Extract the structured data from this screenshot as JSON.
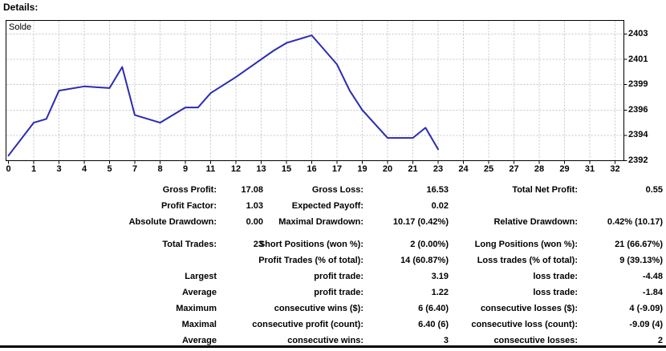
{
  "header": {
    "title": "Details:"
  },
  "chart_style": {
    "line_color": "#2b2bb2",
    "grid_color": "#c6c6c6",
    "border_color": "#000000",
    "background": "#ffffff"
  },
  "chart_data": {
    "type": "line",
    "title": "Solde",
    "legend_position": "top-left",
    "grid": true,
    "xlabel": "",
    "ylabel": "",
    "ylim": [
      2392,
      2403
    ],
    "xlim": [
      0,
      32
    ],
    "x": [
      0,
      1,
      2,
      3,
      4,
      5,
      6,
      7,
      8,
      9,
      10,
      11,
      12,
      13,
      14,
      15,
      16,
      17,
      18,
      19,
      20,
      21,
      22,
      23
    ],
    "values": [
      2392.4,
      2395.0,
      2395.3,
      2398.3,
      2398.8,
      2398.6,
      2400.4,
      2395.6,
      2395.0,
      2396.3,
      2396.3,
      2398.0,
      2399.6,
      2401.0,
      2401.7,
      2402.3,
      2402.9,
      2400.6,
      2398.3,
      2396.0,
      2393.8,
      2393.8,
      2394.6,
      2392.9
    ],
    "x_tick_labels": [
      "0",
      "1",
      "3",
      "4",
      "5",
      "7",
      "8",
      "9",
      "11",
      "12",
      "13",
      "15",
      "16",
      "17",
      "19",
      "20",
      "21",
      "23",
      "24",
      "25",
      "27",
      "28",
      "29",
      "31",
      "32"
    ],
    "y_tick_labels": [
      "2403",
      "2401",
      "2399",
      "2396",
      "2394",
      "2392"
    ]
  },
  "table": {
    "rows": [
      {
        "c1": "Gross Profit:",
        "c2": "17.08",
        "c3": "Gross Loss:",
        "c4": "16.53",
        "c5": "Total Net Profit:",
        "c6": "0.55",
        "gap_before": false
      },
      {
        "c1": "Profit Factor:",
        "c2": "1.03",
        "c3": "Expected Payoff:",
        "c4": "0.02",
        "c5": "",
        "c6": "",
        "gap_before": false
      },
      {
        "c1": "Absolute Drawdown:",
        "c2": "0.00",
        "c3": "Maximal Drawdown:",
        "c4": "10.17 (0.42%)",
        "c5": "Relative Drawdown:",
        "c6": "0.42% (10.17)",
        "gap_before": false
      },
      {
        "c1": "Total Trades:",
        "c2": "23",
        "c3": "Short Positions (won %):",
        "c4": "2 (0.00%)",
        "c5": "Long Positions (won %):",
        "c6": "21 (66.67%)",
        "gap_before": true
      },
      {
        "c1": "",
        "c2": "",
        "c3": "Profit Trades (% of total):",
        "c4": "14 (60.87%)",
        "c5": "Loss trades (% of total):",
        "c6": "9 (39.13%)",
        "gap_before": false
      },
      {
        "c1": "Largest",
        "c2": "",
        "c3": "profit trade:",
        "c4": "3.19",
        "c5": "loss trade:",
        "c6": "-4.48",
        "gap_before": false
      },
      {
        "c1": "Average",
        "c2": "",
        "c3": "profit trade:",
        "c4": "1.22",
        "c5": "loss trade:",
        "c6": "-1.84",
        "gap_before": false
      },
      {
        "c1": "Maximum",
        "c2": "",
        "c3": "consecutive wins ($):",
        "c4": "6 (6.40)",
        "c5": "consecutive losses ($):",
        "c6": "4 (-9.09)",
        "gap_before": false
      },
      {
        "c1": "Maximal",
        "c2": "",
        "c3": "consecutive profit (count):",
        "c4": "6.40 (6)",
        "c5": "consecutive loss (count):",
        "c6": "-9.09 (4)",
        "gap_before": false
      },
      {
        "c1": "Average",
        "c2": "",
        "c3": "consecutive wins:",
        "c4": "3",
        "c5": "consecutive losses:",
        "c6": "2",
        "gap_before": false
      }
    ]
  }
}
